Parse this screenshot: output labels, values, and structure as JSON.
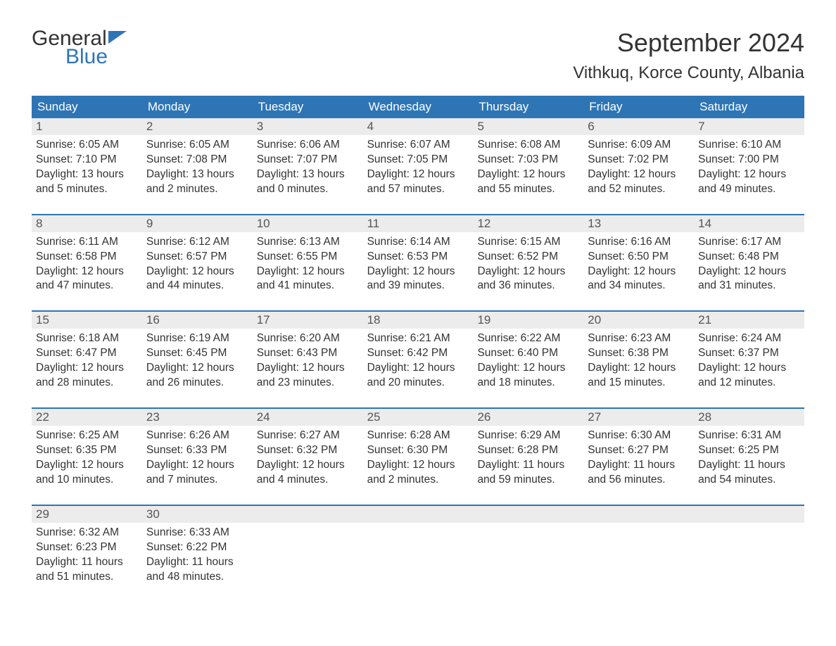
{
  "logo": {
    "line1": "General",
    "line2": "Blue",
    "accent_color": "#2e75b6"
  },
  "title": "September 2024",
  "location": "Vithkuq, Korce County, Albania",
  "colors": {
    "header_bg": "#2e75b6",
    "header_text": "#ffffff",
    "daynum_bg": "#ececec",
    "body_text": "#333333",
    "week_border": "#2e75b6",
    "page_bg": "#ffffff"
  },
  "font": {
    "family": "Arial",
    "title_size": 36,
    "location_size": 24,
    "weekday_size": 17,
    "daynum_size": 17,
    "body_size": 15.5
  },
  "weekdays": [
    "Sunday",
    "Monday",
    "Tuesday",
    "Wednesday",
    "Thursday",
    "Friday",
    "Saturday"
  ],
  "weeks": [
    [
      {
        "day": "1",
        "sunrise": "Sunrise: 6:05 AM",
        "sunset": "Sunset: 7:10 PM",
        "dl1": "Daylight: 13 hours",
        "dl2": "and 5 minutes."
      },
      {
        "day": "2",
        "sunrise": "Sunrise: 6:05 AM",
        "sunset": "Sunset: 7:08 PM",
        "dl1": "Daylight: 13 hours",
        "dl2": "and 2 minutes."
      },
      {
        "day": "3",
        "sunrise": "Sunrise: 6:06 AM",
        "sunset": "Sunset: 7:07 PM",
        "dl1": "Daylight: 13 hours",
        "dl2": "and 0 minutes."
      },
      {
        "day": "4",
        "sunrise": "Sunrise: 6:07 AM",
        "sunset": "Sunset: 7:05 PM",
        "dl1": "Daylight: 12 hours",
        "dl2": "and 57 minutes."
      },
      {
        "day": "5",
        "sunrise": "Sunrise: 6:08 AM",
        "sunset": "Sunset: 7:03 PM",
        "dl1": "Daylight: 12 hours",
        "dl2": "and 55 minutes."
      },
      {
        "day": "6",
        "sunrise": "Sunrise: 6:09 AM",
        "sunset": "Sunset: 7:02 PM",
        "dl1": "Daylight: 12 hours",
        "dl2": "and 52 minutes."
      },
      {
        "day": "7",
        "sunrise": "Sunrise: 6:10 AM",
        "sunset": "Sunset: 7:00 PM",
        "dl1": "Daylight: 12 hours",
        "dl2": "and 49 minutes."
      }
    ],
    [
      {
        "day": "8",
        "sunrise": "Sunrise: 6:11 AM",
        "sunset": "Sunset: 6:58 PM",
        "dl1": "Daylight: 12 hours",
        "dl2": "and 47 minutes."
      },
      {
        "day": "9",
        "sunrise": "Sunrise: 6:12 AM",
        "sunset": "Sunset: 6:57 PM",
        "dl1": "Daylight: 12 hours",
        "dl2": "and 44 minutes."
      },
      {
        "day": "10",
        "sunrise": "Sunrise: 6:13 AM",
        "sunset": "Sunset: 6:55 PM",
        "dl1": "Daylight: 12 hours",
        "dl2": "and 41 minutes."
      },
      {
        "day": "11",
        "sunrise": "Sunrise: 6:14 AM",
        "sunset": "Sunset: 6:53 PM",
        "dl1": "Daylight: 12 hours",
        "dl2": "and 39 minutes."
      },
      {
        "day": "12",
        "sunrise": "Sunrise: 6:15 AM",
        "sunset": "Sunset: 6:52 PM",
        "dl1": "Daylight: 12 hours",
        "dl2": "and 36 minutes."
      },
      {
        "day": "13",
        "sunrise": "Sunrise: 6:16 AM",
        "sunset": "Sunset: 6:50 PM",
        "dl1": "Daylight: 12 hours",
        "dl2": "and 34 minutes."
      },
      {
        "day": "14",
        "sunrise": "Sunrise: 6:17 AM",
        "sunset": "Sunset: 6:48 PM",
        "dl1": "Daylight: 12 hours",
        "dl2": "and 31 minutes."
      }
    ],
    [
      {
        "day": "15",
        "sunrise": "Sunrise: 6:18 AM",
        "sunset": "Sunset: 6:47 PM",
        "dl1": "Daylight: 12 hours",
        "dl2": "and 28 minutes."
      },
      {
        "day": "16",
        "sunrise": "Sunrise: 6:19 AM",
        "sunset": "Sunset: 6:45 PM",
        "dl1": "Daylight: 12 hours",
        "dl2": "and 26 minutes."
      },
      {
        "day": "17",
        "sunrise": "Sunrise: 6:20 AM",
        "sunset": "Sunset: 6:43 PM",
        "dl1": "Daylight: 12 hours",
        "dl2": "and 23 minutes."
      },
      {
        "day": "18",
        "sunrise": "Sunrise: 6:21 AM",
        "sunset": "Sunset: 6:42 PM",
        "dl1": "Daylight: 12 hours",
        "dl2": "and 20 minutes."
      },
      {
        "day": "19",
        "sunrise": "Sunrise: 6:22 AM",
        "sunset": "Sunset: 6:40 PM",
        "dl1": "Daylight: 12 hours",
        "dl2": "and 18 minutes."
      },
      {
        "day": "20",
        "sunrise": "Sunrise: 6:23 AM",
        "sunset": "Sunset: 6:38 PM",
        "dl1": "Daylight: 12 hours",
        "dl2": "and 15 minutes."
      },
      {
        "day": "21",
        "sunrise": "Sunrise: 6:24 AM",
        "sunset": "Sunset: 6:37 PM",
        "dl1": "Daylight: 12 hours",
        "dl2": "and 12 minutes."
      }
    ],
    [
      {
        "day": "22",
        "sunrise": "Sunrise: 6:25 AM",
        "sunset": "Sunset: 6:35 PM",
        "dl1": "Daylight: 12 hours",
        "dl2": "and 10 minutes."
      },
      {
        "day": "23",
        "sunrise": "Sunrise: 6:26 AM",
        "sunset": "Sunset: 6:33 PM",
        "dl1": "Daylight: 12 hours",
        "dl2": "and 7 minutes."
      },
      {
        "day": "24",
        "sunrise": "Sunrise: 6:27 AM",
        "sunset": "Sunset: 6:32 PM",
        "dl1": "Daylight: 12 hours",
        "dl2": "and 4 minutes."
      },
      {
        "day": "25",
        "sunrise": "Sunrise: 6:28 AM",
        "sunset": "Sunset: 6:30 PM",
        "dl1": "Daylight: 12 hours",
        "dl2": "and 2 minutes."
      },
      {
        "day": "26",
        "sunrise": "Sunrise: 6:29 AM",
        "sunset": "Sunset: 6:28 PM",
        "dl1": "Daylight: 11 hours",
        "dl2": "and 59 minutes."
      },
      {
        "day": "27",
        "sunrise": "Sunrise: 6:30 AM",
        "sunset": "Sunset: 6:27 PM",
        "dl1": "Daylight: 11 hours",
        "dl2": "and 56 minutes."
      },
      {
        "day": "28",
        "sunrise": "Sunrise: 6:31 AM",
        "sunset": "Sunset: 6:25 PM",
        "dl1": "Daylight: 11 hours",
        "dl2": "and 54 minutes."
      }
    ],
    [
      {
        "day": "29",
        "sunrise": "Sunrise: 6:32 AM",
        "sunset": "Sunset: 6:23 PM",
        "dl1": "Daylight: 11 hours",
        "dl2": "and 51 minutes."
      },
      {
        "day": "30",
        "sunrise": "Sunrise: 6:33 AM",
        "sunset": "Sunset: 6:22 PM",
        "dl1": "Daylight: 11 hours",
        "dl2": "and 48 minutes."
      },
      {
        "day": "",
        "sunrise": "",
        "sunset": "",
        "dl1": "",
        "dl2": ""
      },
      {
        "day": "",
        "sunrise": "",
        "sunset": "",
        "dl1": "",
        "dl2": ""
      },
      {
        "day": "",
        "sunrise": "",
        "sunset": "",
        "dl1": "",
        "dl2": ""
      },
      {
        "day": "",
        "sunrise": "",
        "sunset": "",
        "dl1": "",
        "dl2": ""
      },
      {
        "day": "",
        "sunrise": "",
        "sunset": "",
        "dl1": "",
        "dl2": ""
      }
    ]
  ]
}
